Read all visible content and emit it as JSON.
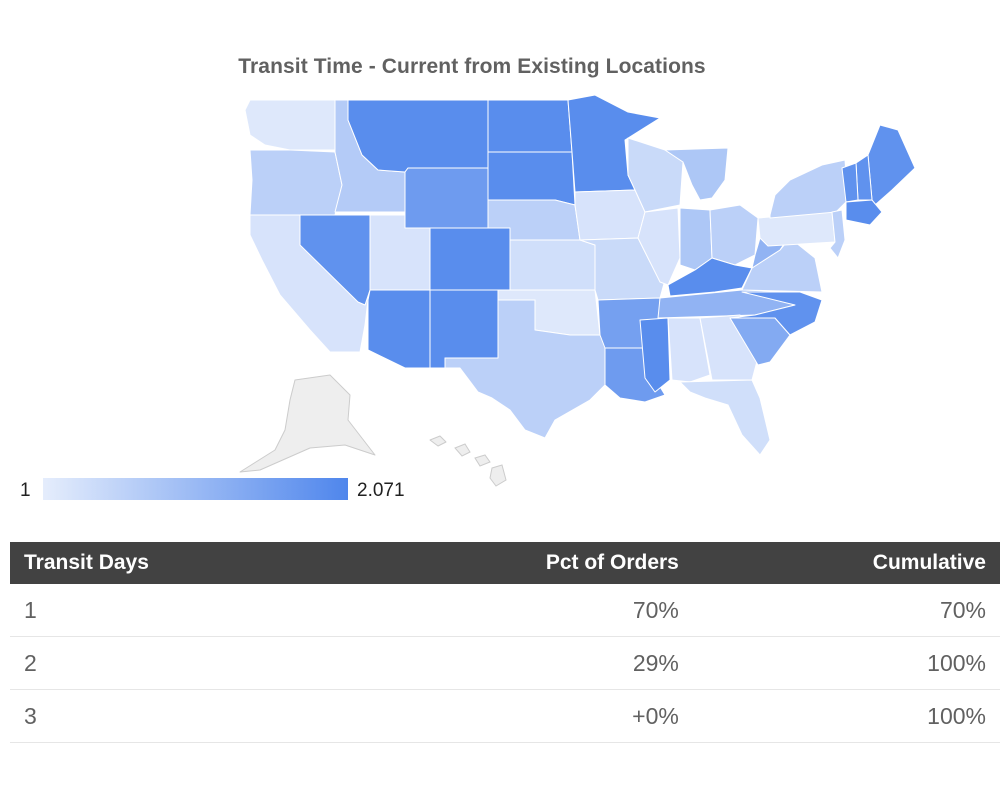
{
  "title": "Transit Time - Current from Existing Locations",
  "legend": {
    "min_label": "1",
    "max_label": "2.071",
    "min_color": "#e5edfc",
    "max_color": "#4f86ec"
  },
  "map": {
    "region": "United States",
    "scale_min": 1,
    "scale_max": 2.071,
    "no_data_color": "#eeeeee",
    "states": [
      {
        "state": "WA",
        "value": 1.05
      },
      {
        "state": "OR",
        "value": 1.3
      },
      {
        "state": "CA",
        "value": 1.1
      },
      {
        "state": "ID",
        "value": 1.35
      },
      {
        "state": "NV",
        "value": 1.95
      },
      {
        "state": "MT",
        "value": 2.0
      },
      {
        "state": "WY",
        "value": 1.85
      },
      {
        "state": "UT",
        "value": 1.1
      },
      {
        "state": "AZ",
        "value": 2.0
      },
      {
        "state": "CO",
        "value": 2.0
      },
      {
        "state": "NM",
        "value": 2.0
      },
      {
        "state": "ND",
        "value": 2.0
      },
      {
        "state": "SD",
        "value": 2.0
      },
      {
        "state": "NE",
        "value": 1.3
      },
      {
        "state": "KS",
        "value": 1.15
      },
      {
        "state": "OK",
        "value": 1.05
      },
      {
        "state": "TX",
        "value": 1.3
      },
      {
        "state": "MN",
        "value": 2.0
      },
      {
        "state": "IA",
        "value": 1.1
      },
      {
        "state": "MO",
        "value": 1.2
      },
      {
        "state": "AR",
        "value": 1.8
      },
      {
        "state": "LA",
        "value": 1.85
      },
      {
        "state": "WI",
        "value": 1.2
      },
      {
        "state": "IL",
        "value": 1.1
      },
      {
        "state": "MS",
        "value": 2.0
      },
      {
        "state": "MI",
        "value": 1.4
      },
      {
        "state": "IN",
        "value": 1.4
      },
      {
        "state": "OH",
        "value": 1.3
      },
      {
        "state": "KY",
        "value": 2.0
      },
      {
        "state": "TN",
        "value": 1.6
      },
      {
        "state": "AL",
        "value": 1.1
      },
      {
        "state": "GA",
        "value": 1.1
      },
      {
        "state": "FL",
        "value": 1.15
      },
      {
        "state": "SC",
        "value": 1.7
      },
      {
        "state": "NC",
        "value": 1.95
      },
      {
        "state": "VA",
        "value": 1.3
      },
      {
        "state": "WV",
        "value": 1.6
      },
      {
        "state": "PA",
        "value": 1.05
      },
      {
        "state": "NY",
        "value": 1.3
      },
      {
        "state": "NJ",
        "value": 1.3
      },
      {
        "state": "ME",
        "value": 1.95
      },
      {
        "state": "NH",
        "value": 1.95
      },
      {
        "state": "VT",
        "value": 1.95
      },
      {
        "state": "MA",
        "value": 2.0
      },
      {
        "state": "AK",
        "value": null
      },
      {
        "state": "HI",
        "value": null
      }
    ]
  },
  "table": {
    "headers": [
      "Transit Days",
      "Pct of Orders",
      "Cumulative"
    ],
    "rows": [
      [
        "1",
        "70%",
        "70%"
      ],
      [
        "2",
        "29%",
        "100%"
      ],
      [
        "3",
        "+0%",
        "100%"
      ]
    ]
  }
}
